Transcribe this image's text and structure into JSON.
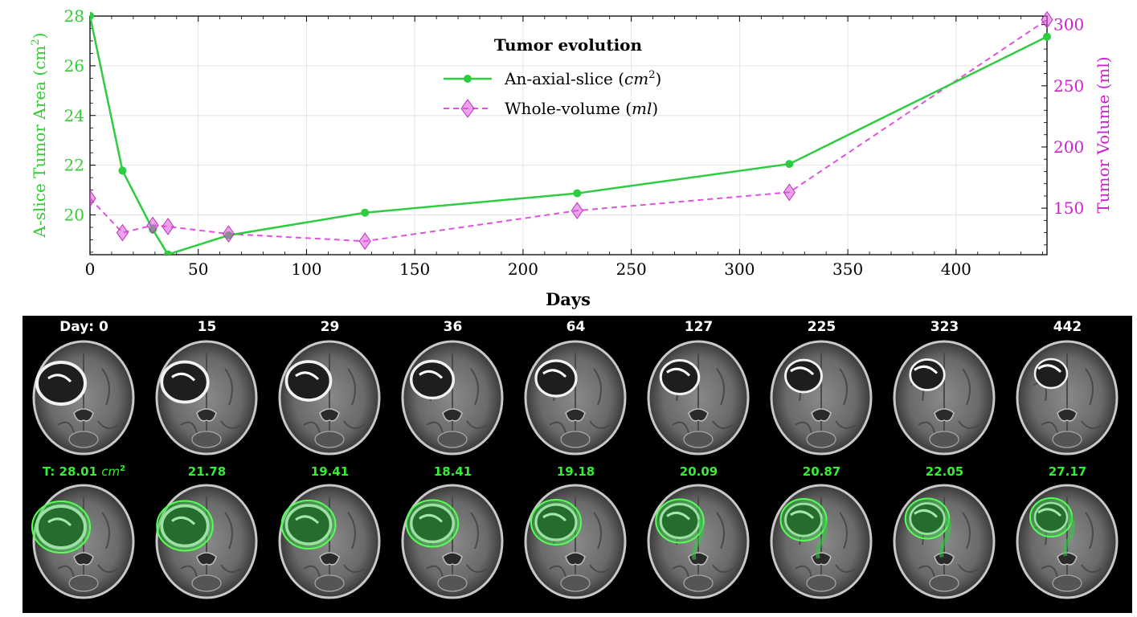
{
  "chart_data": {
    "type": "line",
    "title": "Tumor evolution",
    "xlabel": "Days",
    "ylabel_left": "A-slice Tumor Area (cm²)",
    "ylabel_right": "Tumor Volume (ml)",
    "xlim": [
      0,
      442
    ],
    "ylim_left": [
      18.4,
      28.0
    ],
    "ylim_right": [
      112,
      307
    ],
    "x_ticks": [
      0,
      50,
      100,
      150,
      200,
      250,
      300,
      350,
      400
    ],
    "y_ticks_left": [
      20,
      22,
      24,
      26,
      28
    ],
    "y_ticks_right": [
      150,
      200,
      250,
      300
    ],
    "grid": true,
    "legend_position": "top-center",
    "series": [
      {
        "name": "An-axial-slice (cm²)",
        "axis": "left",
        "color": "#2ecc40",
        "style": "solid",
        "marker": "circle",
        "x": [
          0,
          15,
          29,
          36,
          64,
          127,
          225,
          323,
          442
        ],
        "y": [
          28.01,
          21.78,
          19.41,
          18.41,
          19.18,
          20.09,
          20.87,
          22.05,
          27.17
        ]
      },
      {
        "name": "Whole-volume (ml)",
        "axis": "right",
        "color": "#dd55dd",
        "style": "dashed",
        "marker": "diamond",
        "x": [
          0,
          15,
          29,
          36,
          64,
          127,
          225,
          323,
          442
        ],
        "y": [
          158,
          130,
          136,
          135,
          129,
          123,
          148,
          163,
          304
        ]
      }
    ]
  },
  "images": {
    "day_prefix": "Day: ",
    "area_prefix": "T: ",
    "area_unit": "cm",
    "area_unit_exp": "2",
    "days": [
      "0",
      "15",
      "29",
      "36",
      "64",
      "127",
      "225",
      "323",
      "442"
    ],
    "areas": [
      "28.01",
      "21.78",
      "19.41",
      "18.41",
      "19.18",
      "20.09",
      "20.87",
      "22.05",
      "27.17"
    ]
  },
  "colors": {
    "area_series": "#2ecc40",
    "volume_series": "#dd55dd",
    "left_axis_text": "#33cc33",
    "right_axis_text": "#cc22cc",
    "overlay_green": "#33ee33"
  }
}
